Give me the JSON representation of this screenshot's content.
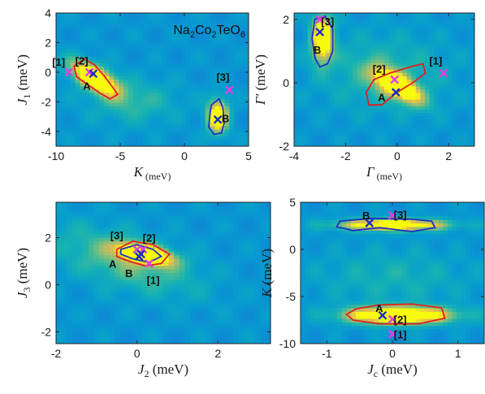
{
  "chart_data": [
    {
      "type": "heatmap",
      "annotation": "Na2Co2TeO6",
      "xlabel": "K (meV)",
      "ylabel": "J1 (meV)",
      "xlabel_parts": [
        "K",
        " (meV)"
      ],
      "ylabel_parts": [
        "J",
        "1",
        " (meV)"
      ],
      "xlim": [
        -10,
        5
      ],
      "ylim": [
        -5,
        4
      ],
      "xticks": [
        -10,
        -5,
        0,
        5
      ],
      "yticks": [
        -4,
        -2,
        0,
        2,
        4
      ],
      "xtick_labels": [
        "-10",
        "-5",
        "0",
        "5"
      ],
      "ytick_labels": [
        "-4",
        "-2",
        "0",
        "2",
        "4"
      ],
      "blobs": [
        {
          "cx": -7.0,
          "cy": -0.4,
          "rx": 2.0,
          "ry": 0.8,
          "rot": -25,
          "w": 0.9
        },
        {
          "cx": 2.6,
          "cy": -3.0,
          "rx": 0.8,
          "ry": 1.1,
          "rot": 0,
          "w": 0.85
        },
        {
          "cx": -4.0,
          "cy": -2.0,
          "rx": 3.5,
          "ry": 1.5,
          "rot": 0,
          "w": 0.2
        }
      ],
      "regions": [
        {
          "name": "A",
          "color": "#e02020",
          "outline": [
            [
              -8.6,
              0.4
            ],
            [
              -7.8,
              0.9
            ],
            [
              -7.0,
              0.5
            ],
            [
              -6.3,
              -0.2
            ],
            [
              -5.6,
              -1.0
            ],
            [
              -5.2,
              -1.5
            ],
            [
              -5.8,
              -1.8
            ],
            [
              -6.6,
              -1.4
            ],
            [
              -7.6,
              -0.8
            ],
            [
              -8.4,
              -0.3
            ]
          ]
        },
        {
          "name": "B",
          "color": "#2030c0",
          "outline": [
            [
              2.1,
              -2.2
            ],
            [
              2.7,
              -1.8
            ],
            [
              3.0,
              -2.4
            ],
            [
              3.1,
              -3.4
            ],
            [
              2.9,
              -4.1
            ],
            [
              2.3,
              -4.2
            ],
            [
              1.9,
              -3.7
            ],
            [
              2.0,
              -2.8
            ]
          ]
        }
      ],
      "markers": [
        {
          "label": "[1]",
          "x": -9.0,
          "y": 0.0,
          "color": "#e040e0",
          "lx": -9.8,
          "ly": 0.7
        },
        {
          "label": "[2]",
          "x": -7.4,
          "y": 0.0,
          "color": "#e040e0",
          "lx": -8.0,
          "ly": 0.8
        },
        {
          "label": "[3]",
          "x": 3.5,
          "y": -1.2,
          "color": "#e040e0",
          "lx": 3.0,
          "ly": -0.3
        },
        {
          "label": "A",
          "x": -7.1,
          "y": -0.1,
          "color": "#1a2cc8",
          "lx": -7.6,
          "ly": -0.9
        },
        {
          "label": "B",
          "x": 2.6,
          "y": -3.2,
          "color": "#1a2cc8",
          "lx": 3.2,
          "ly": -3.1
        }
      ]
    },
    {
      "type": "heatmap",
      "xlabel": "Γ (meV)",
      "ylabel": "Γ′ (meV)",
      "xlabel_parts": [
        "Γ",
        " (meV)"
      ],
      "ylabel_parts": [
        "Γ′",
        "",
        " (meV)"
      ],
      "xlim": [
        -4,
        3
      ],
      "ylim": [
        -2,
        2.2
      ],
      "xticks": [
        -4,
        -2,
        0,
        2
      ],
      "yticks": [
        -2,
        0,
        2
      ],
      "xtick_labels": [
        "-4",
        "-2",
        "0",
        "2"
      ],
      "ytick_labels": [
        "-2",
        "0",
        "2"
      ],
      "blobs": [
        {
          "cx": -2.9,
          "cy": 1.4,
          "rx": 0.4,
          "ry": 0.7,
          "rot": 0,
          "w": 0.9
        },
        {
          "cx": 0.0,
          "cy": -0.1,
          "rx": 1.0,
          "ry": 0.35,
          "rot": -25,
          "w": 0.9
        },
        {
          "cx": -0.5,
          "cy": 0.3,
          "rx": 2.5,
          "ry": 1.2,
          "rot": 0,
          "w": 0.2
        }
      ],
      "regions": [
        {
          "name": "B",
          "color": "#2030c0",
          "outline": [
            [
              -3.2,
              2.0
            ],
            [
              -2.8,
              2.1
            ],
            [
              -2.5,
              1.7
            ],
            [
              -2.5,
              1.0
            ],
            [
              -2.7,
              0.6
            ],
            [
              -3.0,
              0.5
            ],
            [
              -3.2,
              0.8
            ],
            [
              -3.3,
              1.4
            ]
          ]
        },
        {
          "name": "A",
          "color": "#e02020",
          "outline": [
            [
              -1.2,
              -0.3
            ],
            [
              -0.9,
              0.1
            ],
            [
              -0.3,
              0.3
            ],
            [
              0.5,
              0.5
            ],
            [
              1.0,
              0.6
            ],
            [
              1.1,
              0.3
            ],
            [
              0.6,
              0.0
            ],
            [
              0.0,
              -0.3
            ],
            [
              -0.6,
              -0.7
            ],
            [
              -1.1,
              -0.7
            ]
          ]
        }
      ],
      "markers": [
        {
          "label": "[1]",
          "x": 1.8,
          "y": 0.3,
          "color": "#e040e0",
          "lx": 1.5,
          "ly": 0.7
        },
        {
          "label": "[2]",
          "x": -0.1,
          "y": 0.1,
          "color": "#e040e0",
          "lx": -0.7,
          "ly": 0.45
        },
        {
          "label": "[3]",
          "x": -3.0,
          "y": 2.0,
          "color": "#e040e0",
          "lx": -2.7,
          "ly": 1.95
        },
        {
          "label": "A",
          "x": -0.05,
          "y": -0.3,
          "color": "#1a2cc8",
          "lx": -0.6,
          "ly": -0.45
        },
        {
          "label": "B",
          "x": -3.0,
          "y": 1.6,
          "color": "#1a2cc8",
          "lx": -3.1,
          "ly": 1.05
        }
      ]
    },
    {
      "type": "heatmap",
      "xlabel": "J2 (meV)",
      "ylabel": "J3 (meV)",
      "xlabel_parts": [
        "J",
        "2",
        " (meV)"
      ],
      "ylabel_parts": [
        "J",
        "3",
        " (meV)"
      ],
      "xlim": [
        -2,
        3.3
      ],
      "ylim": [
        -2.5,
        3.5
      ],
      "xticks": [
        -2,
        0,
        2
      ],
      "yticks": [
        -2,
        0,
        2
      ],
      "xtick_labels": [
        "-2",
        "0",
        "2"
      ],
      "ytick_labels": [
        "-2",
        "0",
        "2"
      ],
      "blobs": [
        {
          "cx": 0.2,
          "cy": 1.3,
          "rx": 0.7,
          "ry": 0.35,
          "rot": -25,
          "w": 0.95
        },
        {
          "cx": -0.3,
          "cy": 1.0,
          "rx": 2.0,
          "ry": 1.0,
          "rot": -35,
          "w": 0.3
        }
      ],
      "regions": [
        {
          "name": "A",
          "color": "#e02020",
          "outline": [
            [
              -0.5,
              1.5
            ],
            [
              -0.1,
              1.85
            ],
            [
              0.4,
              1.7
            ],
            [
              0.8,
              1.3
            ],
            [
              0.6,
              0.9
            ],
            [
              0.2,
              0.8
            ],
            [
              -0.2,
              1.0
            ],
            [
              -0.5,
              1.2
            ]
          ]
        },
        {
          "name": "B",
          "color": "#2030c0",
          "outline": [
            [
              -0.4,
              1.5
            ],
            [
              0.0,
              1.7
            ],
            [
              0.4,
              1.5
            ],
            [
              0.6,
              1.2
            ],
            [
              0.3,
              0.95
            ],
            [
              -0.1,
              1.1
            ],
            [
              -0.4,
              1.3
            ]
          ]
        }
      ],
      "markers": [
        {
          "label": "[1]",
          "x": 0.3,
          "y": 0.9,
          "color": "#e040e0",
          "lx": 0.4,
          "ly": 0.2
        },
        {
          "label": "[2]",
          "x": 0.15,
          "y": 1.5,
          "color": "#e040e0",
          "lx": 0.3,
          "ly": 2.0
        },
        {
          "label": "[3]",
          "x": 0.0,
          "y": 1.5,
          "color": "#e040e0",
          "lx": -0.5,
          "ly": 2.1
        },
        {
          "label": "A",
          "x": 0.1,
          "y": 1.3,
          "color": "#1a2cc8",
          "lx": -0.6,
          "ly": 0.9
        },
        {
          "label": "B",
          "x": 0.05,
          "y": 1.2,
          "color": "#1a2cc8",
          "lx": -0.2,
          "ly": 0.5
        }
      ]
    },
    {
      "type": "heatmap",
      "xlabel": "Jc (meV)",
      "ylabel": "K (meV)",
      "xlabel_parts": [
        "J",
        "c",
        " (meV)"
      ],
      "ylabel_parts": [
        "K",
        "",
        " (meV)"
      ],
      "xlim": [
        -1.4,
        1.4
      ],
      "ylim": [
        -10,
        5
      ],
      "xticks": [
        -1,
        0,
        1
      ],
      "yticks": [
        -10,
        -5,
        0,
        5
      ],
      "xtick_labels": [
        "-1",
        "0",
        "1"
      ],
      "ytick_labels": [
        "-10",
        "-5",
        "0",
        "5"
      ],
      "blobs": [
        {
          "cx": 0.1,
          "cy": -7.0,
          "rx": 0.8,
          "ry": 0.9,
          "rot": 0,
          "w": 0.95
        },
        {
          "cx": 0.0,
          "cy": 2.6,
          "rx": 0.8,
          "ry": 0.6,
          "rot": 0,
          "w": 0.85
        },
        {
          "cx": 0.0,
          "cy": -3.0,
          "rx": 1.2,
          "ry": 3.0,
          "rot": 0,
          "w": 0.15
        }
      ],
      "regions": [
        {
          "name": "B",
          "color": "#2030c0",
          "outline": [
            [
              -0.8,
              3.0
            ],
            [
              -0.3,
              3.3
            ],
            [
              0.3,
              3.2
            ],
            [
              0.6,
              3.0
            ],
            [
              0.65,
              2.3
            ],
            [
              0.3,
              1.9
            ],
            [
              -0.2,
              2.3
            ],
            [
              -0.6,
              2.0
            ],
            [
              -0.85,
              2.4
            ]
          ]
        },
        {
          "name": "A",
          "color": "#e02020",
          "outline": [
            [
              -0.55,
              -6.3
            ],
            [
              -0.2,
              -5.9
            ],
            [
              0.3,
              -5.8
            ],
            [
              0.75,
              -6.2
            ],
            [
              0.8,
              -7.3
            ],
            [
              0.4,
              -7.9
            ],
            [
              -0.2,
              -7.9
            ],
            [
              -0.6,
              -7.5
            ],
            [
              -0.7,
              -6.9
            ]
          ]
        }
      ],
      "markers": [
        {
          "label": "[1]",
          "x": 0.0,
          "y": -9.0,
          "color": "#e040e0",
          "lx": 0.12,
          "ly": -9.0
        },
        {
          "label": "[2]",
          "x": 0.0,
          "y": -7.4,
          "color": "#e040e0",
          "lx": 0.12,
          "ly": -7.4
        },
        {
          "label": "[3]",
          "x": 0.0,
          "y": 3.6,
          "color": "#e040e0",
          "lx": 0.12,
          "ly": 3.7
        },
        {
          "label": "A",
          "x": -0.15,
          "y": -7.0,
          "color": "#1a2cc8",
          "lx": -0.2,
          "ly": -6.2
        },
        {
          "label": "B",
          "x": -0.35,
          "y": 2.8,
          "color": "#1a2cc8",
          "lx": -0.4,
          "ly": 3.6
        }
      ]
    }
  ]
}
